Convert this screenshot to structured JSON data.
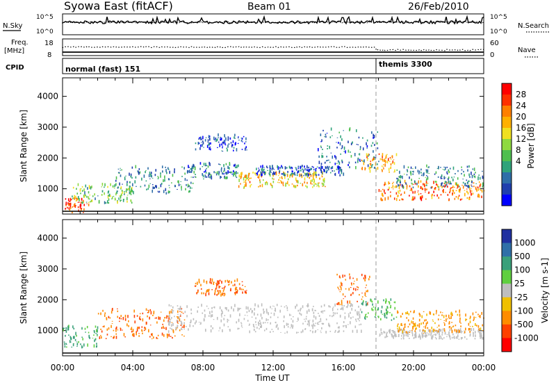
{
  "header": {
    "station": "Syowa East (fitACF)",
    "beam": "Beam 01",
    "date": "26/Feb/2010"
  },
  "strips": {
    "nsky": {
      "label": "N.Sky",
      "ticks": [
        "10^5",
        "10^0"
      ],
      "right_label": "N.Search",
      "right_ticks": [
        "10^5",
        "10^0"
      ]
    },
    "freq": {
      "label_line1": "Freq.",
      "label_line2": "[MHz]",
      "ticks": [
        "18",
        "8"
      ],
      "right_label": "Nave",
      "right_ticks": [
        "60",
        "0"
      ]
    },
    "cpid": {
      "label": "CPID",
      "segments": [
        {
          "name": "normal (fast) 151"
        },
        {
          "name": "themis 3300"
        }
      ]
    }
  },
  "colorbars": {
    "power": {
      "title": "Power [dB]",
      "ticks": [
        "28",
        "24",
        "20",
        "16",
        "12",
        "8",
        "4"
      ],
      "colors": [
        "#0000ff",
        "#1f3fae",
        "#2e6ea8",
        "#2fa37a",
        "#4fbf4f",
        "#8fd93f",
        "#f0e020",
        "#ffb000",
        "#ff7f00",
        "#ff3000",
        "#ff0000"
      ]
    },
    "velocity": {
      "title": "Velocity [m s-1]",
      "ticks": [
        "1000",
        "500",
        "100",
        "25",
        "-25",
        "-100",
        "-500",
        "-1000"
      ],
      "colors": [
        "#2030a0",
        "#2f6fa8",
        "#3aa07a",
        "#5fcf3f",
        "#bebebe",
        "#f0c000",
        "#ff8c00",
        "#ff4000",
        "#ff0000"
      ]
    }
  },
  "chart_data": [
    {
      "type": "heatmap",
      "title": "Power",
      "ylabel": "Slant Range [km]",
      "yticks": [
        "4000",
        "3000",
        "2000",
        "1000"
      ],
      "ylim": [
        180,
        4600
      ],
      "xlim": [
        0,
        24
      ],
      "xticks": [
        "00:00",
        "04:00",
        "08:00",
        "12:00",
        "16:00",
        "20:00",
        "00:00"
      ],
      "bands": [
        {
          "t0": 0,
          "t1": 1.5,
          "r0": 200,
          "r1": 700,
          "value": 26
        },
        {
          "t0": 0.5,
          "t1": 4,
          "r0": 500,
          "r1": 1100,
          "value": 14
        },
        {
          "t0": 3,
          "t1": 7.5,
          "r0": 800,
          "r1": 1700,
          "value": 10
        },
        {
          "t0": 7,
          "t1": 10,
          "r0": 1300,
          "r1": 1800,
          "value": 9
        },
        {
          "t0": 7.5,
          "t1": 10.5,
          "r0": 2200,
          "r1": 2700,
          "value": 6
        },
        {
          "t0": 10,
          "t1": 15,
          "r0": 1000,
          "r1": 1500,
          "value": 20
        },
        {
          "t0": 11,
          "t1": 16,
          "r0": 1400,
          "r1": 1700,
          "value": 7
        },
        {
          "t0": 14.5,
          "t1": 18,
          "r0": 1600,
          "r1": 2900,
          "value": 8
        },
        {
          "t0": 17,
          "t1": 19,
          "r0": 1500,
          "r1": 2100,
          "value": 22
        },
        {
          "t0": 18,
          "t1": 24,
          "r0": 600,
          "r1": 1200,
          "value": 24
        },
        {
          "t0": 19,
          "t1": 24,
          "r0": 1000,
          "r1": 1700,
          "value": 10
        }
      ]
    },
    {
      "type": "heatmap",
      "title": "Velocity",
      "ylabel": "Slant Range [km]",
      "yticks": [
        "4000",
        "3000",
        "2000",
        "1000"
      ],
      "ylim": [
        180,
        4600
      ],
      "xlim": [
        0,
        24
      ],
      "xticks": [
        "00:00",
        "04:00",
        "08:00",
        "12:00",
        "16:00",
        "20:00",
        "00:00"
      ],
      "xlabel": "Time UT",
      "bands": [
        {
          "t0": 0,
          "t1": 2,
          "r0": 400,
          "r1": 1100,
          "value": 80
        },
        {
          "t0": 2,
          "t1": 7,
          "r0": 700,
          "r1": 1700,
          "value": -300
        },
        {
          "t0": 7.5,
          "t1": 10.5,
          "r0": 2100,
          "r1": 2600,
          "value": -300
        },
        {
          "t0": 6,
          "t1": 17,
          "r0": 900,
          "r1": 1800,
          "value": 0
        },
        {
          "t0": 15.5,
          "t1": 17.5,
          "r0": 1800,
          "r1": 2800,
          "value": -300
        },
        {
          "t0": 17,
          "t1": 19,
          "r0": 1300,
          "r1": 2000,
          "value": 60
        },
        {
          "t0": 18,
          "t1": 24,
          "r0": 700,
          "r1": 1000,
          "value": 0
        },
        {
          "t0": 19,
          "t1": 24,
          "r0": 900,
          "r1": 1600,
          "value": -80
        }
      ]
    }
  ],
  "time_axis": {
    "label": "Time UT"
  }
}
